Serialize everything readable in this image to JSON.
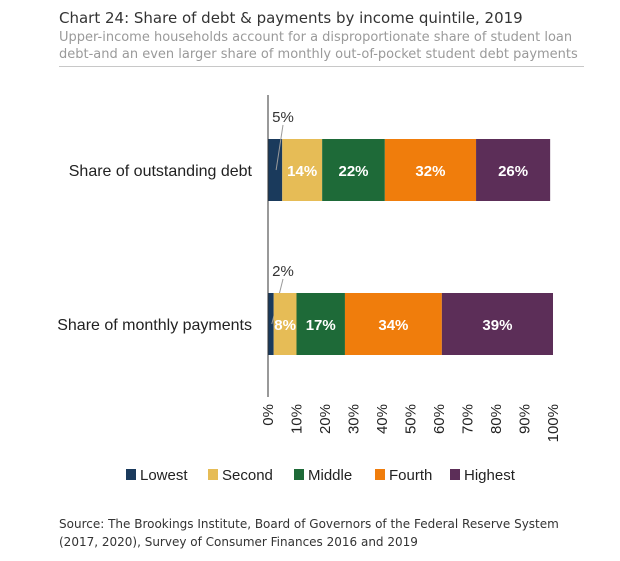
{
  "header": {
    "title": "Chart 24: Share of debt & payments by income quintile, 2019",
    "subtitle": "Upper-income households account for a disproportionate share of student loan debt-and an even larger share of monthly out-of-pocket student debt payments"
  },
  "source": "Source: The Brookings Institute, Board of Governors of the Federal Reserve System (2017, 2020), Survey of Consumer Finances 2016 and 2019",
  "colors": {
    "lowest": "#1a3a5c",
    "second": "#e6bc56",
    "middle": "#1e6a38",
    "fourth": "#f07d0c",
    "highest": "#5c2e58"
  },
  "chart_data": {
    "type": "bar",
    "orientation": "horizontal",
    "stacked": true,
    "categories": [
      "Share of outstanding debt",
      "Share of monthly payments"
    ],
    "series": [
      {
        "name": "Lowest",
        "values": [
          5,
          2
        ],
        "labels": [
          "5%",
          "2%"
        ],
        "color": "#1a3a5c"
      },
      {
        "name": "Second",
        "values": [
          14,
          8
        ],
        "labels": [
          "14%",
          "8%"
        ],
        "color": "#e6bc56"
      },
      {
        "name": "Middle",
        "values": [
          22,
          17
        ],
        "labels": [
          "22%",
          "17%"
        ],
        "color": "#1e6a38"
      },
      {
        "name": "Fourth",
        "values": [
          32,
          34
        ],
        "labels": [
          "32%",
          "34%"
        ],
        "color": "#f07d0c"
      },
      {
        "name": "Highest",
        "values": [
          26,
          39
        ],
        "labels": [
          "26%",
          "39%"
        ],
        "color": "#5c2e58"
      }
    ],
    "xlim": [
      0,
      100
    ],
    "ticks": [
      "0%",
      "10%",
      "20%",
      "30%",
      "40%",
      "50%",
      "60%",
      "70%",
      "80%",
      "90%",
      "100%"
    ],
    "legend_position": "bottom",
    "grid": false
  }
}
